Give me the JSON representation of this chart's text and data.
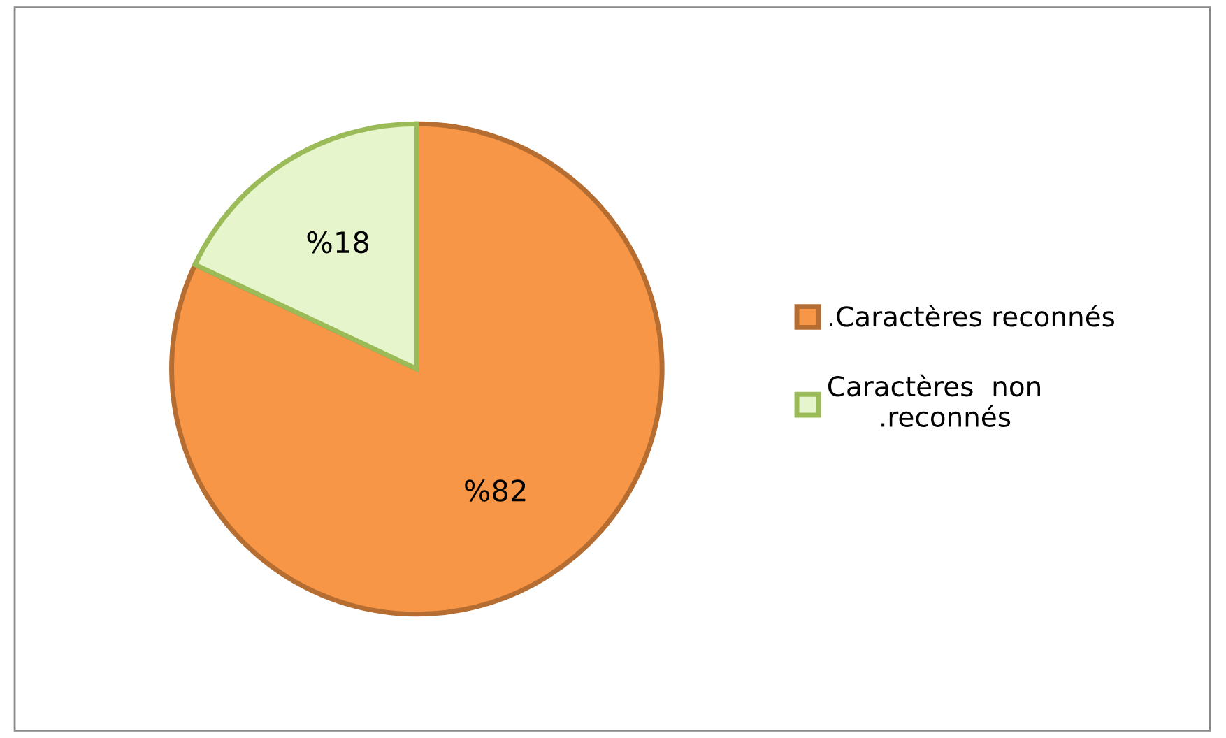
{
  "chart_data": {
    "type": "pie",
    "categories": [
      ".Caractères reconnés",
      "Caractères  non .reconnés"
    ],
    "values": [
      82,
      18
    ],
    "colors": [
      "#f79646",
      "#e6f5cc"
    ],
    "value_labels": [
      "%82",
      "%18"
    ],
    "legend": "right"
  }
}
